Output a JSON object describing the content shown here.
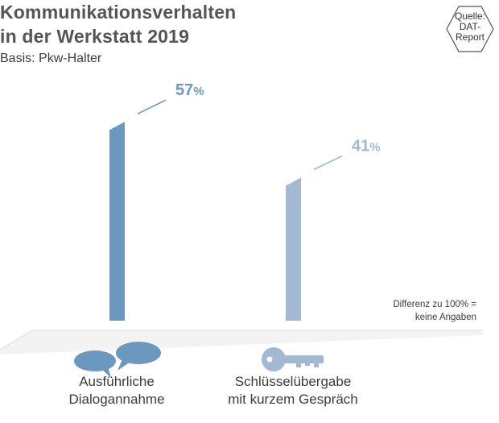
{
  "chart_data": {
    "type": "bar",
    "title_lines": [
      "Kommunikationsverhalten",
      "in der Werkstatt 2019"
    ],
    "subtitle": "Basis: Pkw-Halter",
    "categories": [
      {
        "lines": [
          "Ausführliche",
          "Dialogannahme"
        ],
        "icon": "speech-bubbles-icon"
      },
      {
        "lines": [
          "Schlüsselübergabe",
          "mit kurzem Gespräch"
        ],
        "icon": "key-icon"
      }
    ],
    "values": [
      57,
      41
    ],
    "value_labels": [
      "57",
      "41"
    ],
    "unit": "%",
    "ylim": [
      0,
      100
    ],
    "grid": false,
    "legend": "none",
    "bar_colors": [
      "#6c98bf",
      "#a3b8d3"
    ],
    "label_colors": [
      "#6c98bf",
      "#a3b8d3"
    ]
  },
  "source_badge": {
    "lines": [
      "Quelle:",
      "DAT-",
      "Report"
    ]
  },
  "footnote": {
    "lines": [
      "Differenz zu 100% =",
      "keine Angaben"
    ]
  }
}
